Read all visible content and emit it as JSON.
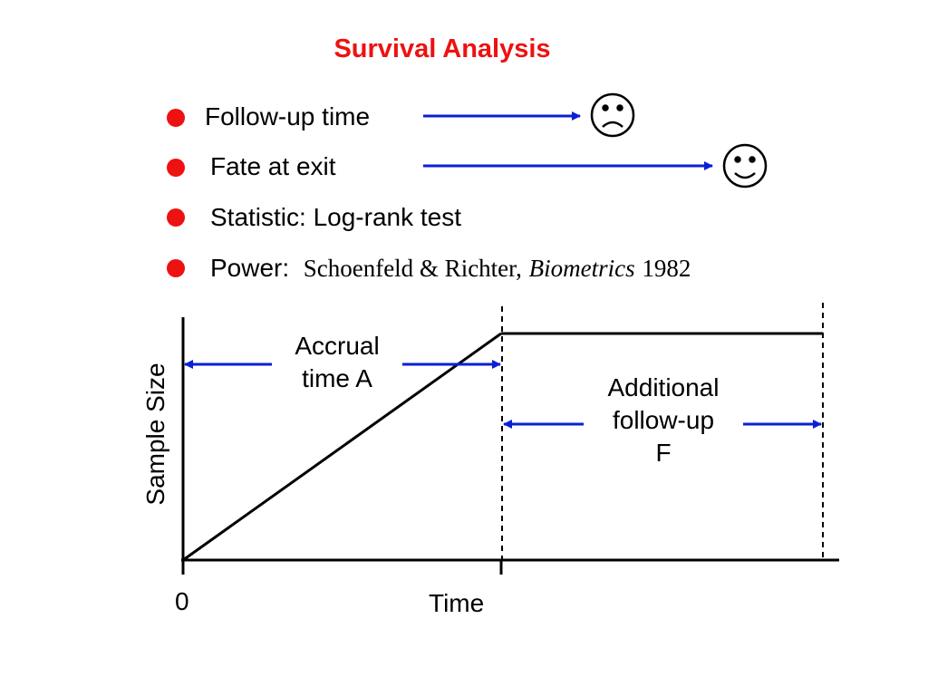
{
  "title": "Survival Analysis",
  "bullets": [
    {
      "text": "Follow-up time",
      "icon": "frown-face-icon"
    },
    {
      "text": "Fate at exit",
      "icon": "smile-face-icon"
    },
    {
      "text": "Statistic:  Log-rank test"
    },
    {
      "label": "Power:",
      "citation_authors": "Schoenfeld & Richter,",
      "citation_journal": "Biometrics",
      "citation_year": "1982"
    }
  ],
  "diagram": {
    "y_axis_label": "Sample Size",
    "x_axis_label": "Time",
    "origin_label": "0",
    "accrual_label_line1": "Accrual",
    "accrual_label_line2": "time A",
    "followup_label_line1": "Additional",
    "followup_label_line2": "follow-up",
    "followup_label_line3": "F"
  },
  "colors": {
    "title": "#ee1111",
    "bullet": "#ee1111",
    "arrow": "#0a1fd6",
    "line": "#000000"
  }
}
